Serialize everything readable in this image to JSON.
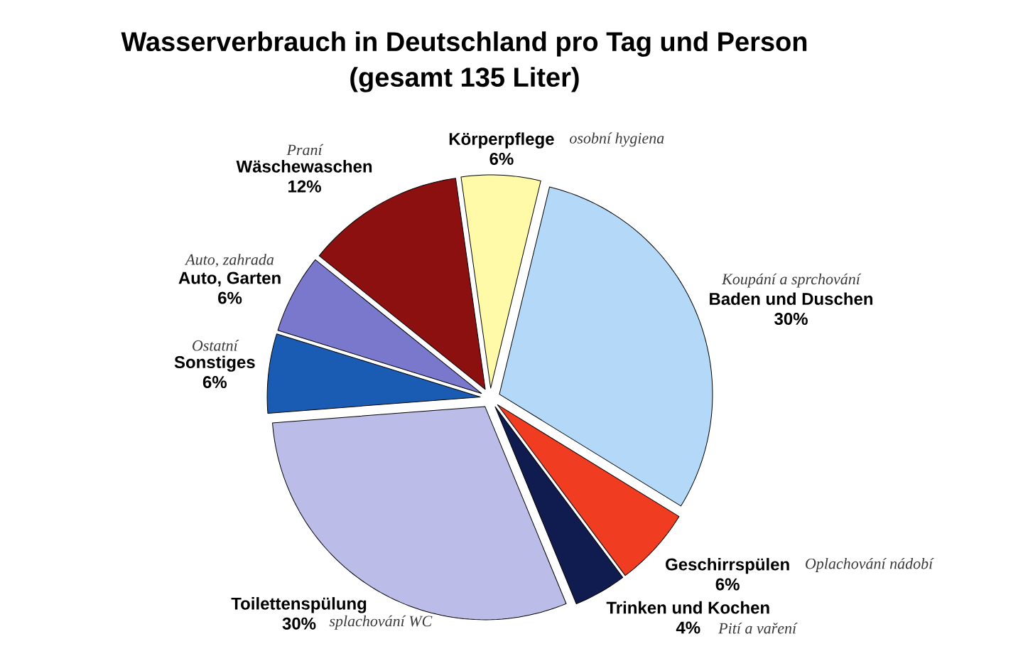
{
  "chart_data": {
    "type": "pie",
    "title": "Wasserverbrauch in Deutschland pro Tag und Person",
    "subtitle": "(gesamt 135 Liter)",
    "categories": [
      "Körperpflege",
      "Baden und Duschen",
      "Geschirrspülen",
      "Trinken und Kochen",
      "Toilettenspülung",
      "Sonstiges",
      "Auto, Garten",
      "Wäschewaschen"
    ],
    "values": [
      6,
      30,
      6,
      4,
      30,
      6,
      6,
      12
    ],
    "value_labels": [
      "6%",
      "30%",
      "6%",
      "4%",
      "30%",
      "6%",
      "6%",
      "12%"
    ],
    "colors": [
      "#fffaa8",
      "#b4d8f8",
      "#f03c20",
      "#101c50",
      "#bcbce8",
      "#1a5cb4",
      "#7a78cc",
      "#8c1010"
    ],
    "annotations": [
      "osobní hygiena",
      "Koupání a sprchování",
      "Oplachování nádobí",
      "Pití a vaření",
      "splachování WC",
      "Ostatní",
      "Auto, zahrada",
      "Praní"
    ]
  }
}
